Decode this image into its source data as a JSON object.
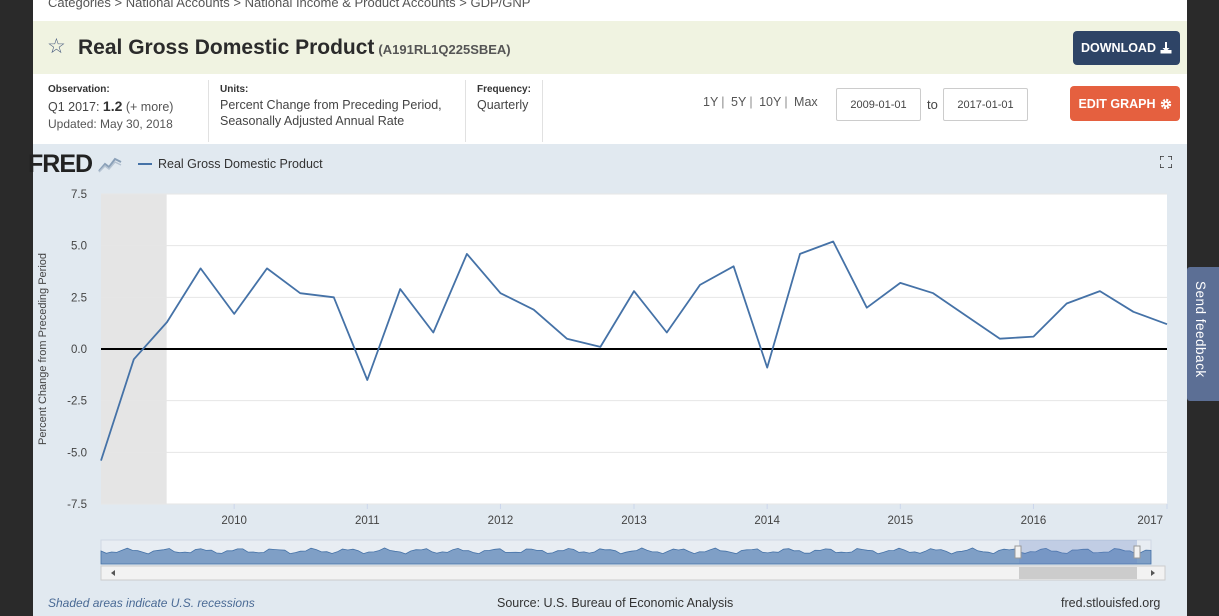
{
  "breadcrumb": {
    "items": [
      "Categories",
      "National Accounts",
      "National Income & Product Accounts",
      "GDP/GNP"
    ],
    "sep": ">"
  },
  "header": {
    "title": "Real Gross Domestic Product",
    "series_id": "(A191RL1Q225SBEA)",
    "download_label": "DOWNLOAD"
  },
  "meta": {
    "observation_label": "Observation:",
    "observation_period": "Q1 2017:",
    "observation_value": "1.2",
    "observation_more": "(+ more)",
    "updated": "Updated: May 30, 2018",
    "units_label": "Units:",
    "units_line1": "Percent Change from Preceding Period,",
    "units_line2": "Seasonally Adjusted Annual Rate",
    "frequency_label": "Frequency:",
    "frequency_value": "Quarterly"
  },
  "controls": {
    "range_links": [
      "1Y",
      "5Y",
      "10Y",
      "Max"
    ],
    "start_date": "2009-01-01",
    "to_label": "to",
    "end_date": "2017-01-01",
    "edit_label": "EDIT GRAPH"
  },
  "chart_header": {
    "logo": "FRED",
    "legend": "Real Gross Domestic Product"
  },
  "footer": {
    "recession_note": "Shaded areas indicate U.S. recessions",
    "source": "Source: U.S. Bureau of Economic Analysis",
    "url": "fred.stlouisfed.org"
  },
  "feedback_label": "Send feedback",
  "colors": {
    "line": "#4572a7",
    "download_bg": "#2e4466",
    "edit_bg": "#e5603f",
    "title_bar_bg": "#f0f3e1",
    "chart_bg": "#e1e9f0",
    "recession_shade": "#e5e5e5"
  },
  "icons": [
    "star-icon",
    "download-icon",
    "gear-icon",
    "fullscreen-icon",
    "fred-logo-icon"
  ],
  "chart_data": {
    "type": "line",
    "title": "",
    "xlabel": "",
    "ylabel": "Percent Change from Preceding Period",
    "ylim": [
      -7.5,
      7.5
    ],
    "yticks": [
      "7.5",
      "5.0",
      "2.5",
      "0.0",
      "-2.5",
      "-5.0",
      "-7.5"
    ],
    "xticks": [
      "2010",
      "2011",
      "2012",
      "2013",
      "2014",
      "2015",
      "2016",
      "2017"
    ],
    "xlim": [
      "2009-01-01",
      "2017-01-01"
    ],
    "grid": true,
    "legend_position": "top-left",
    "recession": {
      "start": "2009-01-01",
      "end": "2009-06-30"
    },
    "series": [
      {
        "name": "Real Gross Domestic Product",
        "x": [
          "2009-01-01",
          "2009-04-01",
          "2009-07-01",
          "2009-10-01",
          "2010-01-01",
          "2010-04-01",
          "2010-07-01",
          "2010-10-01",
          "2011-01-01",
          "2011-04-01",
          "2011-07-01",
          "2011-10-01",
          "2012-01-01",
          "2012-04-01",
          "2012-07-01",
          "2012-10-01",
          "2013-01-01",
          "2013-04-01",
          "2013-07-01",
          "2013-10-01",
          "2014-01-01",
          "2014-04-01",
          "2014-07-01",
          "2014-10-01",
          "2015-01-01",
          "2015-04-01",
          "2015-07-01",
          "2015-10-01",
          "2016-01-01",
          "2016-04-01",
          "2016-07-01",
          "2016-10-01",
          "2017-01-01"
        ],
        "values": [
          -5.4,
          -0.5,
          1.3,
          3.9,
          1.7,
          3.9,
          2.7,
          2.5,
          -1.5,
          2.9,
          0.8,
          4.6,
          2.7,
          1.9,
          0.5,
          0.1,
          2.8,
          0.8,
          3.1,
          4.0,
          -0.9,
          4.6,
          5.2,
          2.0,
          3.2,
          2.7,
          1.6,
          0.5,
          0.6,
          2.2,
          2.8,
          1.8,
          1.2
        ]
      }
    ]
  }
}
